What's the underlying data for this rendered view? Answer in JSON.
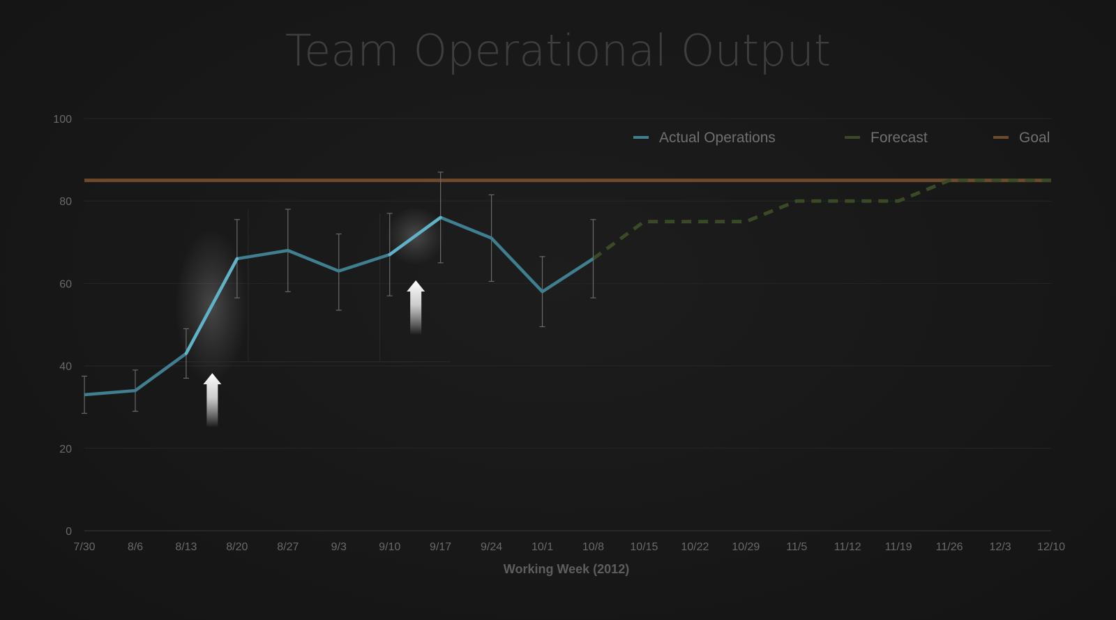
{
  "chart_data": {
    "type": "line",
    "title": "Team Operational Output",
    "xlabel": "Working Week (2012)",
    "ylabel": "",
    "ylim": [
      0,
      100
    ],
    "yticks": [
      0,
      20,
      40,
      60,
      80,
      100
    ],
    "categories": [
      "7/30",
      "8/6",
      "8/13",
      "8/20",
      "8/27",
      "9/3",
      "9/10",
      "9/17",
      "9/24",
      "10/1",
      "10/8",
      "10/15",
      "10/22",
      "10/29",
      "11/5",
      "11/12",
      "11/19",
      "11/26",
      "12/3",
      "12/10"
    ],
    "grid": true,
    "legend_position": "top-right",
    "series": [
      {
        "name": "Actual Operations",
        "color": "#3f7f8f",
        "style": "solid",
        "values": [
          33,
          34,
          43,
          66,
          68,
          63,
          67,
          76,
          71,
          58,
          66,
          null,
          null,
          null,
          null,
          null,
          null,
          null,
          null,
          null
        ],
        "error_low": [
          28.5,
          29,
          37,
          56.5,
          58,
          53.5,
          57,
          65,
          60.5,
          49.5,
          56.5,
          null,
          null,
          null,
          null,
          null,
          null,
          null,
          null,
          null
        ],
        "error_high": [
          37.5,
          39,
          49,
          75.5,
          78,
          72,
          77,
          87,
          81.5,
          66.5,
          75.5,
          null,
          null,
          null,
          null,
          null,
          null,
          null,
          null,
          null
        ]
      },
      {
        "name": "Forecast",
        "color": "#3a4a26",
        "style": "dashed",
        "values": [
          null,
          null,
          null,
          null,
          null,
          null,
          null,
          null,
          null,
          null,
          66,
          75,
          75,
          75,
          80,
          80,
          80,
          85,
          85,
          85
        ]
      },
      {
        "name": "Goal",
        "color": "#6e4a2c",
        "style": "solid",
        "values": [
          85,
          85,
          85,
          85,
          85,
          85,
          85,
          85,
          85,
          85,
          85,
          85,
          85,
          85,
          85,
          85,
          85,
          85,
          85,
          85
        ]
      }
    ],
    "annotations": [
      {
        "type": "up-arrow",
        "x_between": [
          "8/13",
          "8/20"
        ]
      },
      {
        "type": "up-arrow",
        "x_between": [
          "9/10",
          "9/17"
        ]
      }
    ]
  }
}
